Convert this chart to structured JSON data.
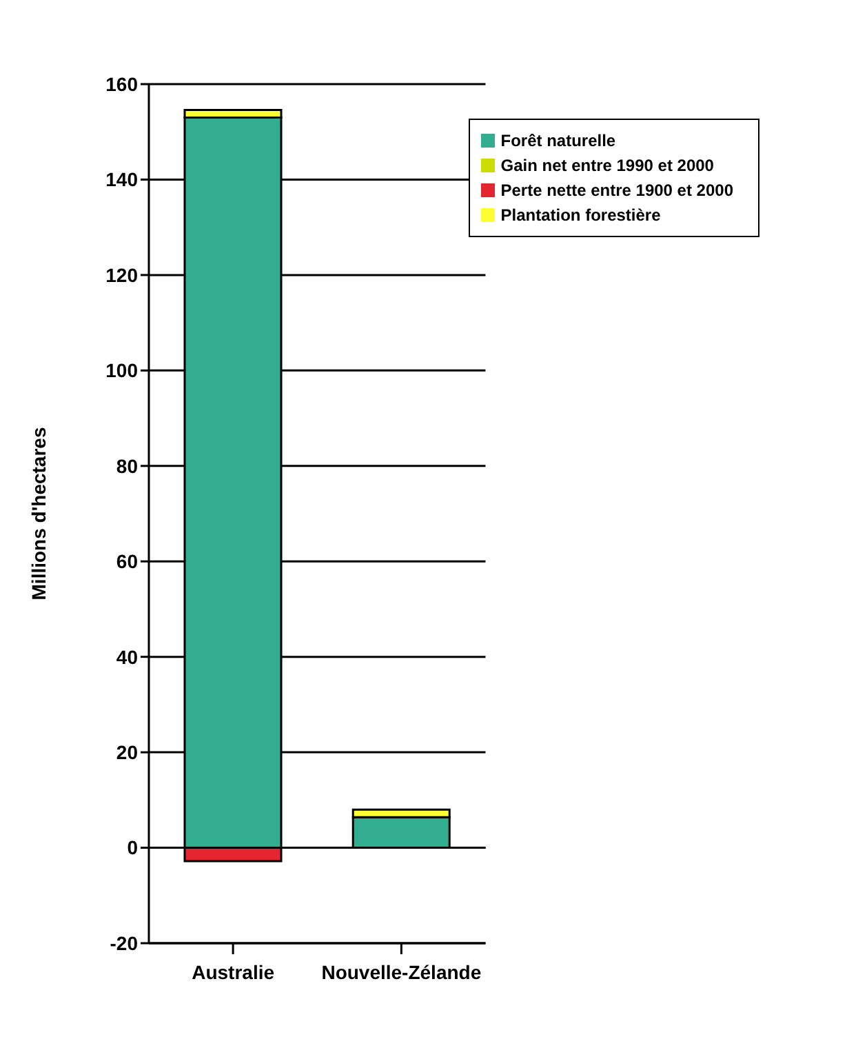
{
  "chart_data": {
    "type": "bar",
    "stacked": true,
    "ylabel": "Millions d'hectares",
    "categories": [
      "Australie",
      "Nouvelle-Zélande"
    ],
    "series": [
      {
        "name": "Forêt naturelle",
        "color": "#33ad8f",
        "values": [
          153,
          6.4
        ]
      },
      {
        "name": "Plantation forestière",
        "color": "#ffff33",
        "values": [
          1.6,
          1.6
        ]
      },
      {
        "name": "Gain net entre 1990 et 2000",
        "color": "#ccdd00",
        "values": [
          null,
          null
        ]
      },
      {
        "name": "Perte nette entre 1900 et 2000",
        "color": "#e3262f",
        "values": [
          -2.8,
          null
        ]
      }
    ],
    "ylim": [
      -20,
      160
    ],
    "yticks": [
      -20,
      0,
      20,
      40,
      60,
      80,
      100,
      120,
      140,
      160
    ],
    "grid": "y",
    "legend": "top right"
  }
}
